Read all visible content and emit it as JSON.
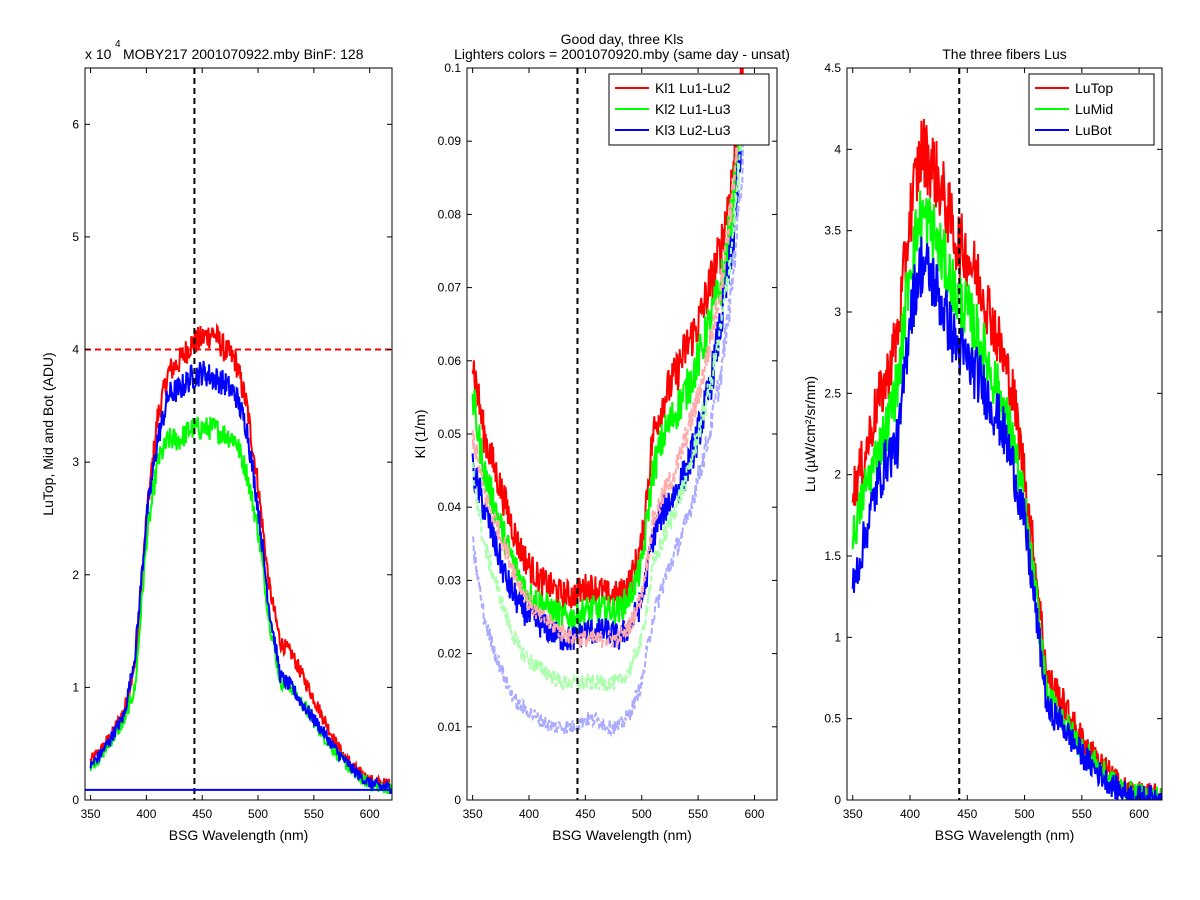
{
  "figure": {
    "panels": [
      {
        "title_lines": [
          "x 10",
          "MOBY217  2001070922.mby BinF: 128"
        ],
        "exponent_label": "4"
      },
      {
        "title_lines": [
          "Good day, three Kls",
          "Lighters colors = 2001070920.mby (same day - unsat)"
        ]
      },
      {
        "title_lines": [
          "The three fibers Lus"
        ]
      }
    ]
  },
  "chart_data": [
    {
      "type": "line",
      "title": "MOBY217  2001070922.mby BinF: 128",
      "exponent_note": "x 10^4",
      "xlabel": "BSG Wavelength (nm)",
      "ylabel": "LuTop, Mid and Bot (ADU)",
      "xlim": [
        345,
        620
      ],
      "ylim": [
        0,
        6.5
      ],
      "x_ticks": [
        350,
        400,
        450,
        500,
        550,
        600
      ],
      "y_ticks": [
        0,
        1,
        2,
        3,
        4,
        5,
        6
      ],
      "x_tick_labels": [
        "350",
        "400",
        "450",
        "500",
        "550",
        "600"
      ],
      "y_tick_labels": [
        "0",
        "1",
        "2",
        "3",
        "4",
        "5",
        "6"
      ],
      "reference_lines": [
        {
          "orientation": "vertical",
          "value": 443,
          "color": "#000000",
          "style": "dashed"
        },
        {
          "orientation": "horizontal",
          "value": 4.0,
          "color": "#ff0000",
          "style": "dashed"
        },
        {
          "orientation": "horizontal",
          "value": 0.09,
          "color": "#0000ff",
          "style": "solid"
        }
      ],
      "x": [
        350,
        360,
        370,
        380,
        390,
        400,
        410,
        420,
        430,
        440,
        450,
        460,
        470,
        480,
        490,
        500,
        510,
        520,
        530,
        540,
        550,
        560,
        570,
        580,
        590,
        600,
        610,
        620
      ],
      "series": [
        {
          "color": "#ff0000",
          "noise": 0.12,
          "values": [
            0.35,
            0.45,
            0.6,
            0.8,
            1.2,
            2.5,
            3.4,
            3.8,
            3.9,
            4.05,
            4.1,
            4.15,
            4.0,
            3.9,
            3.5,
            2.8,
            1.9,
            1.4,
            1.3,
            1.1,
            0.9,
            0.7,
            0.5,
            0.35,
            0.25,
            0.18,
            0.15,
            0.14
          ]
        },
        {
          "color": "#00ff00",
          "noise": 0.12,
          "values": [
            0.3,
            0.4,
            0.55,
            0.7,
            1.0,
            2.3,
            3.0,
            3.2,
            3.2,
            3.3,
            3.3,
            3.3,
            3.25,
            3.2,
            2.9,
            2.4,
            1.6,
            1.05,
            1.0,
            0.85,
            0.7,
            0.55,
            0.42,
            0.3,
            0.2,
            0.14,
            0.11,
            0.1
          ]
        },
        {
          "color": "#0000ff",
          "noise": 0.12,
          "values": [
            0.3,
            0.42,
            0.58,
            0.75,
            1.3,
            2.5,
            3.2,
            3.6,
            3.65,
            3.75,
            3.8,
            3.75,
            3.7,
            3.6,
            3.3,
            2.6,
            1.7,
            1.1,
            1.0,
            0.85,
            0.72,
            0.58,
            0.44,
            0.32,
            0.22,
            0.15,
            0.12,
            0.11
          ]
        }
      ]
    },
    {
      "type": "line",
      "title": "Good day, three Kls",
      "subtitle": "Lighters colors = 2001070920.mby (same day - unsat)",
      "xlabel": "BSG Wavelength (nm)",
      "ylabel": "Kl (1/m)",
      "xlim": [
        345,
        620
      ],
      "ylim": [
        0,
        0.1
      ],
      "x_ticks": [
        350,
        400,
        450,
        500,
        550,
        600
      ],
      "y_ticks": [
        0,
        0.01,
        0.02,
        0.03,
        0.04,
        0.05,
        0.06,
        0.07,
        0.08,
        0.09,
        0.1
      ],
      "x_tick_labels": [
        "350",
        "400",
        "450",
        "500",
        "550",
        "600"
      ],
      "y_tick_labels": [
        "0",
        "0.01",
        "0.02",
        "0.03",
        "0.04",
        "0.05",
        "0.06",
        "0.07",
        "0.08",
        "0.09",
        "0.1"
      ],
      "legend_position": "top-right",
      "reference_lines": [
        {
          "orientation": "vertical",
          "value": 443,
          "color": "#000000",
          "style": "dashed"
        }
      ],
      "x": [
        350,
        360,
        370,
        380,
        390,
        400,
        410,
        420,
        430,
        440,
        450,
        460,
        470,
        480,
        490,
        500,
        510,
        520,
        530,
        540,
        550,
        560,
        570,
        580,
        590
      ],
      "series": [
        {
          "name": "Kl1 Lu1-Lu2",
          "color": "#ff0000",
          "noise": 0.003,
          "values": [
            0.06,
            0.05,
            0.045,
            0.04,
            0.035,
            0.032,
            0.03,
            0.029,
            0.028,
            0.028,
            0.029,
            0.029,
            0.028,
            0.028,
            0.03,
            0.035,
            0.05,
            0.055,
            0.058,
            0.062,
            0.065,
            0.07,
            0.075,
            0.085,
            0.1
          ]
        },
        {
          "name": "Kl2 Lu1-Lu3",
          "color": "#00ff00",
          "noise": 0.003,
          "values": [
            0.055,
            0.045,
            0.04,
            0.035,
            0.031,
            0.028,
            0.027,
            0.026,
            0.025,
            0.025,
            0.026,
            0.026,
            0.026,
            0.026,
            0.028,
            0.032,
            0.045,
            0.05,
            0.053,
            0.056,
            0.06,
            0.065,
            0.07,
            0.08,
            0.095
          ]
        },
        {
          "name": "Kl3 Lu2-Lu3",
          "color": "#0000ff",
          "noise": 0.003,
          "values": [
            0.045,
            0.04,
            0.035,
            0.03,
            0.027,
            0.025,
            0.024,
            0.023,
            0.022,
            0.022,
            0.023,
            0.023,
            0.023,
            0.022,
            0.024,
            0.027,
            0.036,
            0.04,
            0.042,
            0.045,
            0.05,
            0.056,
            0.065,
            0.075,
            0.092
          ]
        },
        {
          "color": "#ffaaaa",
          "noise": 0.002,
          "dashed": true,
          "values": [
            0.05,
            0.042,
            0.038,
            0.034,
            0.03,
            0.027,
            0.025,
            0.024,
            0.023,
            0.022,
            0.022,
            0.022,
            0.022,
            0.022,
            0.024,
            0.028,
            0.038,
            0.042,
            0.045,
            0.05,
            0.055,
            0.062,
            0.07,
            0.082,
            0.098
          ]
        },
        {
          "color": "#aaffaa",
          "noise": 0.002,
          "dashed": true,
          "values": [
            0.045,
            0.035,
            0.03,
            0.025,
            0.021,
            0.019,
            0.018,
            0.017,
            0.016,
            0.016,
            0.016,
            0.016,
            0.016,
            0.016,
            0.018,
            0.022,
            0.032,
            0.036,
            0.04,
            0.044,
            0.05,
            0.056,
            0.064,
            0.076,
            0.092
          ]
        },
        {
          "color": "#aaaaff",
          "noise": 0.002,
          "dashed": true,
          "values": [
            0.035,
            0.025,
            0.02,
            0.016,
            0.013,
            0.012,
            0.011,
            0.01,
            0.01,
            0.01,
            0.011,
            0.011,
            0.01,
            0.01,
            0.012,
            0.016,
            0.025,
            0.03,
            0.034,
            0.038,
            0.044,
            0.05,
            0.058,
            0.07,
            0.088
          ]
        }
      ]
    },
    {
      "type": "line",
      "title": "The three fibers Lus",
      "xlabel": "BSG Wavelength (nm)",
      "ylabel": "Lu (µW/cm²/sr/nm)",
      "xlim": [
        345,
        620
      ],
      "ylim": [
        0,
        4.5
      ],
      "x_ticks": [
        350,
        400,
        450,
        500,
        550,
        600
      ],
      "y_ticks": [
        0,
        0.5,
        1,
        1.5,
        2,
        2.5,
        3,
        3.5,
        4,
        4.5
      ],
      "x_tick_labels": [
        "350",
        "400",
        "450",
        "500",
        "550",
        "600"
      ],
      "y_tick_labels": [
        "0",
        "0.5",
        "1",
        "1.5",
        "2",
        "2.5",
        "3",
        "3.5",
        "4",
        "4.5"
      ],
      "legend_position": "top-right",
      "reference_lines": [
        {
          "orientation": "vertical",
          "value": 443,
          "color": "#000000",
          "style": "dashed"
        }
      ],
      "x": [
        350,
        360,
        370,
        380,
        390,
        400,
        410,
        420,
        430,
        440,
        450,
        460,
        470,
        480,
        490,
        500,
        510,
        520,
        530,
        540,
        550,
        560,
        570,
        580,
        590,
        600,
        610,
        620
      ],
      "series": [
        {
          "name": "LuTop",
          "color": "#ff0000",
          "noise": 0.18,
          "values": [
            1.9,
            2.1,
            2.4,
            2.6,
            2.9,
            3.6,
            4.0,
            3.9,
            3.7,
            3.45,
            3.35,
            3.2,
            3.0,
            2.75,
            2.5,
            2.0,
            1.4,
            0.75,
            0.65,
            0.5,
            0.38,
            0.28,
            0.2,
            0.12,
            0.06,
            0.04,
            0.03,
            0.03
          ]
        },
        {
          "name": "LuMid",
          "color": "#00ff00",
          "noise": 0.18,
          "values": [
            1.6,
            1.9,
            2.1,
            2.3,
            2.6,
            3.3,
            3.6,
            3.5,
            3.3,
            3.1,
            3.0,
            2.85,
            2.65,
            2.45,
            2.2,
            1.8,
            1.25,
            0.62,
            0.55,
            0.42,
            0.32,
            0.24,
            0.16,
            0.09,
            0.05,
            0.03,
            0.02,
            0.02
          ]
        },
        {
          "name": "LuBot",
          "color": "#0000ff",
          "noise": 0.18,
          "values": [
            1.3,
            1.6,
            1.9,
            2.1,
            2.2,
            3.0,
            3.3,
            3.2,
            3.0,
            2.8,
            2.7,
            2.6,
            2.45,
            2.3,
            2.05,
            1.7,
            1.15,
            0.55,
            0.5,
            0.38,
            0.28,
            0.2,
            0.13,
            0.07,
            0.04,
            0.02,
            0.02,
            0.02
          ]
        }
      ]
    }
  ]
}
